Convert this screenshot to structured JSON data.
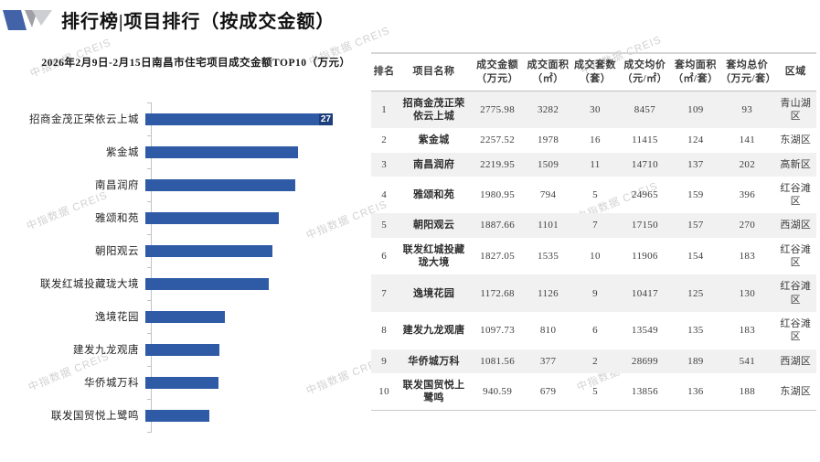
{
  "page": {
    "title": "排行榜|项目排行（按成交金额）"
  },
  "watermark": "中指数据 CREIS",
  "chart_data": {
    "type": "bar",
    "orientation": "horizontal",
    "title": "2026年2月9日-2月15日南昌市住宅项目成交金额TOP10（万元）",
    "categories": [
      "招商金茂正荣依云上城",
      "紫金城",
      "南昌润府",
      "雅颂和苑",
      "朝阳观云",
      "联发红城投藏珑大境",
      "逸境花园",
      "建发九龙观唐",
      "华侨城万科",
      "联发国贸悦上鹭鸣"
    ],
    "values": [
      2775.98,
      2257.52,
      2219.95,
      1980.95,
      1887.66,
      1827.05,
      1172.68,
      1097.73,
      1081.56,
      940.59
    ],
    "xlabel": "",
    "ylabel": "",
    "value_axis_labels": "hidden",
    "grid": false,
    "legend": false,
    "bar_color": "#2f5ba6",
    "bar_end_label": {
      "category_index": 0,
      "text": "27"
    }
  },
  "table": {
    "columns": [
      {
        "label": "排名",
        "unit": ""
      },
      {
        "label": "项目名称",
        "unit": ""
      },
      {
        "label": "成交金额",
        "unit": "（万元）"
      },
      {
        "label": "成交面积",
        "unit": "（㎡）"
      },
      {
        "label": "成交套数",
        "unit": "（套）"
      },
      {
        "label": "成交均价",
        "unit": "（元/㎡）"
      },
      {
        "label": "套均面积",
        "unit": "（㎡/套）"
      },
      {
        "label": "套均总价",
        "unit": "（万元/套）"
      },
      {
        "label": "区域",
        "unit": ""
      }
    ],
    "rows": [
      {
        "rank": "1",
        "name": "招商金茂正荣依云上城",
        "amount": "2775.98",
        "area": "3282",
        "units": "30",
        "avg_price": "8457",
        "avg_area": "109",
        "avg_total": "93",
        "district": "青山湖区"
      },
      {
        "rank": "2",
        "name": "紫金城",
        "amount": "2257.52",
        "area": "1978",
        "units": "16",
        "avg_price": "11415",
        "avg_area": "124",
        "avg_total": "141",
        "district": "东湖区"
      },
      {
        "rank": "3",
        "name": "南昌润府",
        "amount": "2219.95",
        "area": "1509",
        "units": "11",
        "avg_price": "14710",
        "avg_area": "137",
        "avg_total": "202",
        "district": "高新区"
      },
      {
        "rank": "4",
        "name": "雅颂和苑",
        "amount": "1980.95",
        "area": "794",
        "units": "5",
        "avg_price": "24965",
        "avg_area": "159",
        "avg_total": "396",
        "district": "红谷滩区"
      },
      {
        "rank": "5",
        "name": "朝阳观云",
        "amount": "1887.66",
        "area": "1101",
        "units": "7",
        "avg_price": "17150",
        "avg_area": "157",
        "avg_total": "270",
        "district": "西湖区"
      },
      {
        "rank": "6",
        "name": "联发红城投藏珑大境",
        "amount": "1827.05",
        "area": "1535",
        "units": "10",
        "avg_price": "11906",
        "avg_area": "154",
        "avg_total": "183",
        "district": "红谷滩区"
      },
      {
        "rank": "7",
        "name": "逸境花园",
        "amount": "1172.68",
        "area": "1126",
        "units": "9",
        "avg_price": "10417",
        "avg_area": "125",
        "avg_total": "130",
        "district": "红谷滩区"
      },
      {
        "rank": "8",
        "name": "建发九龙观唐",
        "amount": "1097.73",
        "area": "810",
        "units": "6",
        "avg_price": "13549",
        "avg_area": "135",
        "avg_total": "183",
        "district": "红谷滩区"
      },
      {
        "rank": "9",
        "name": "华侨城万科",
        "amount": "1081.56",
        "area": "377",
        "units": "2",
        "avg_price": "28699",
        "avg_area": "189",
        "avg_total": "541",
        "district": "西湖区"
      },
      {
        "rank": "10",
        "name": "联发国贸悦上鹭鸣",
        "amount": "940.59",
        "area": "679",
        "units": "5",
        "avg_price": "13856",
        "avg_area": "136",
        "avg_total": "188",
        "district": "东湖区"
      }
    ]
  }
}
